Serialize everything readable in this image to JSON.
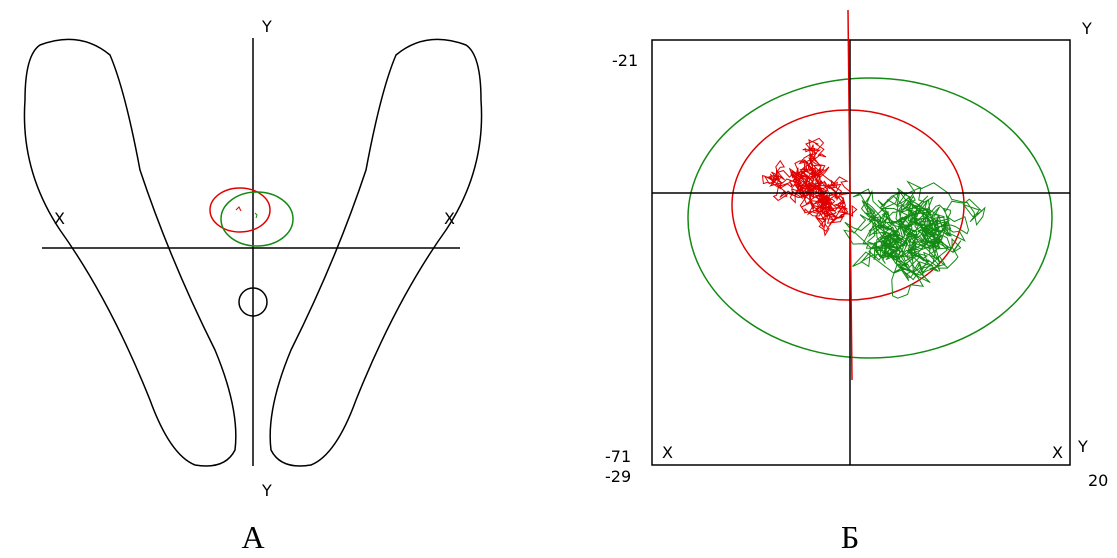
{
  "panel_a": {
    "y_top": "Y",
    "x_left": "X",
    "x_right": "X",
    "y_bottom": "Y",
    "caption": "А"
  },
  "panel_b": {
    "y_top": "Y",
    "y_max": "-21",
    "y_min": "-71",
    "x_left": "X",
    "x_right": "X",
    "y_corner": "Y",
    "x_min": "-29",
    "x_max": "20",
    "caption": "Б"
  }
}
